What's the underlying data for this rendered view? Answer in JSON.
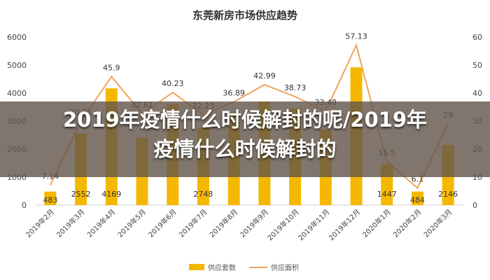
{
  "chart_data": {
    "type": "bar",
    "title": "东莞新房市场供应趋势",
    "categories": [
      "2019年2月",
      "2019年3月",
      "2019年4月",
      "2019年5月",
      "2019年6月",
      "2019年7月",
      "2019年8月",
      "2019年9月",
      "2019年10月",
      "2019年11月",
      "2019年12月",
      "2020年1月",
      "2020年2月",
      "2020年3月"
    ],
    "series": [
      {
        "name": "供应套数",
        "type": "bar",
        "axis": "left",
        "color": "#F5B800",
        "values": [
          483,
          2552,
          4169,
          2400,
          3600,
          2748,
          3300,
          3700,
          3450,
          2700,
          4920,
          1447,
          484,
          2146
        ],
        "labels": [
          "483",
          "2552",
          "4169",
          "",
          "",
          "2748",
          "",
          "",
          "",
          "",
          "",
          "1447",
          "484",
          "2146"
        ]
      },
      {
        "name": "供应面积",
        "type": "line",
        "axis": "right",
        "color": "#F0A45C",
        "values": [
          7.14,
          30.01,
          45.9,
          32.61,
          40.23,
          32.23,
          36.89,
          42.99,
          38.73,
          33.48,
          57.13,
          15.5,
          6.1,
          29
        ],
        "labels": [
          "7.14",
          "30.01",
          "45.9",
          "32.61",
          "40.23",
          "32.23",
          "36.89",
          "42.99",
          "38.73",
          "33.48",
          "57.13",
          "15.5",
          "6.1",
          "29"
        ]
      }
    ],
    "ylim_left": [
      0,
      6000
    ],
    "yticks_left": [
      "0",
      "1000",
      "2000",
      "3000",
      "4000",
      "5000",
      "6000"
    ],
    "ylim_right": [
      0,
      60
    ],
    "yticks_right": [
      "0",
      "10",
      "20",
      "30",
      "40",
      "50",
      "60"
    ],
    "grid": false,
    "legend_position": "bottom"
  },
  "overlay": {
    "line1": "2019年疫情什么时候解封的呢/2019年",
    "line2": "疫情什么时候解封的"
  }
}
